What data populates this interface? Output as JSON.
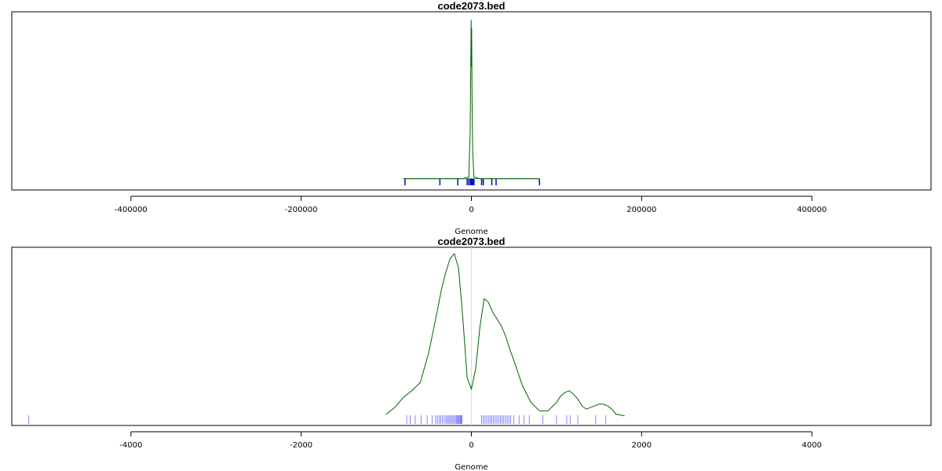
{
  "chart_data": [
    {
      "type": "line",
      "title": "code2073.bed",
      "xlabel": "Genome",
      "ylabel": "",
      "xlim": [
        -540000,
        540000
      ],
      "ylim": [
        0,
        1.0
      ],
      "x_ticks": [
        -400000,
        -200000,
        0,
        200000,
        400000
      ],
      "x_tick_labels": [
        "-400000",
        "-200000",
        "0",
        "200000",
        "400000"
      ],
      "grid": false,
      "colors": {
        "density": "#006400",
        "baseline": "#2e8b57",
        "rug": "#0000cd",
        "frame": "#000000"
      },
      "series": [
        {
          "x": [
            -80000,
            -10000,
            -3000,
            -1500,
            -800,
            -300,
            0,
            300,
            800,
            1500,
            3000,
            10000,
            80000
          ],
          "y": [
            0.03,
            0.03,
            0.04,
            0.3,
            0.65,
            0.98,
            0.7,
            0.93,
            0.5,
            0.2,
            0.04,
            0.03,
            0.03
          ]
        }
      ],
      "baseline": {
        "from": -80000,
        "to": 80000,
        "y": 0.03
      },
      "rug": [
        -78000,
        -37000,
        -16000,
        -5000,
        -3000,
        -1200,
        -600,
        -200,
        200,
        700,
        1500,
        3000,
        12000,
        14000,
        24000,
        29000,
        80000
      ]
    },
    {
      "type": "line",
      "title": "code2073.bed",
      "xlabel": "Genome",
      "ylabel": "",
      "xlim": [
        -5400,
        5400
      ],
      "ylim": [
        0,
        1.0
      ],
      "x_ticks": [
        -4000,
        -2000,
        0,
        2000,
        4000
      ],
      "x_tick_labels": [
        "-4000",
        "-2000",
        "0",
        "2000",
        "4000"
      ],
      "grid": false,
      "colors": {
        "density": "#006400",
        "rug": "#6666ff",
        "center_line": "#ffcccc",
        "frame": "#000000"
      },
      "series": [
        {
          "x": [
            -1000,
            -900,
            -800,
            -700,
            -600,
            -500,
            -400,
            -350,
            -300,
            -250,
            -200,
            -150,
            -100,
            -50,
            0,
            50,
            100,
            150,
            200,
            250,
            300,
            350,
            400,
            450,
            500,
            600,
            700,
            800,
            900,
            1000,
            1050,
            1100,
            1150,
            1200,
            1250,
            1300,
            1350,
            1400,
            1450,
            1500,
            1550,
            1600,
            1650,
            1700,
            1800
          ],
          "y": [
            0.03,
            0.07,
            0.13,
            0.17,
            0.22,
            0.4,
            0.65,
            0.78,
            0.88,
            0.96,
            0.99,
            0.9,
            0.6,
            0.25,
            0.18,
            0.3,
            0.55,
            0.72,
            0.7,
            0.64,
            0.6,
            0.56,
            0.5,
            0.42,
            0.35,
            0.2,
            0.1,
            0.05,
            0.05,
            0.1,
            0.14,
            0.16,
            0.17,
            0.15,
            0.12,
            0.08,
            0.06,
            0.07,
            0.08,
            0.09,
            0.09,
            0.08,
            0.06,
            0.03,
            0.02
          ]
        }
      ],
      "rug": [
        -5200,
        -760,
        -720,
        -660,
        -590,
        -520,
        -460,
        -420,
        -400,
        -380,
        -360,
        -340,
        -320,
        -300,
        -285,
        -270,
        -255,
        -240,
        -225,
        -210,
        -195,
        -180,
        -170,
        -160,
        -150,
        -140,
        -130,
        -120,
        -110,
        120,
        140,
        160,
        180,
        200,
        220,
        240,
        260,
        280,
        300,
        320,
        340,
        360,
        380,
        400,
        420,
        440,
        460,
        500,
        560,
        620,
        680,
        840,
        1000,
        1120,
        1160,
        1250,
        1460,
        1580
      ]
    }
  ]
}
